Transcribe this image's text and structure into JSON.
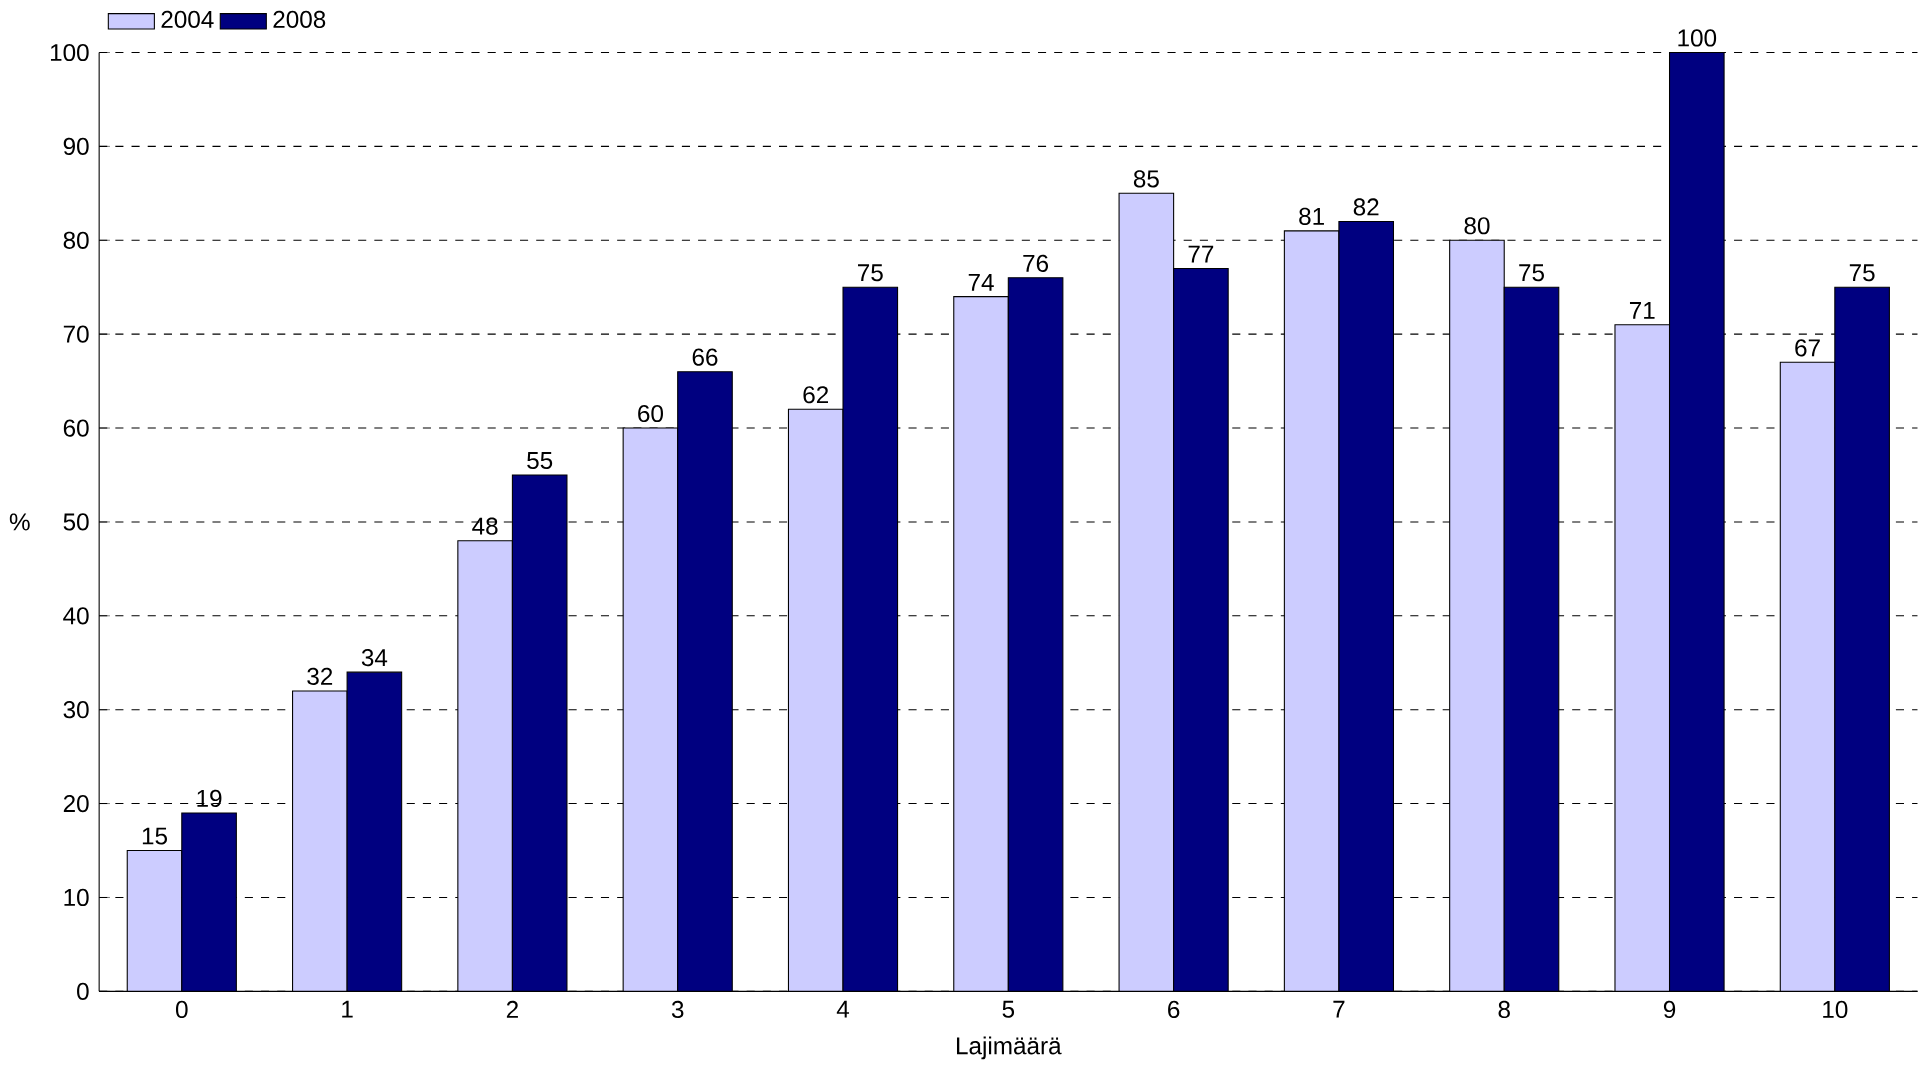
{
  "chart_data": {
    "type": "bar",
    "xlabel": "Lajimäärä",
    "ylabel": "%",
    "categories": [
      "0",
      "1",
      "2",
      "3",
      "4",
      "5",
      "6",
      "7",
      "8",
      "9",
      "10"
    ],
    "series": [
      {
        "name": "2004",
        "color": "#ccccff",
        "values": [
          15,
          32,
          48,
          60,
          62,
          74,
          85,
          81,
          80,
          71,
          67
        ]
      },
      {
        "name": "2008",
        "color": "#000080",
        "values": [
          19,
          34,
          55,
          66,
          75,
          76,
          77,
          82,
          75,
          100,
          75
        ]
      }
    ],
    "ylim": [
      0,
      100
    ],
    "yticks": [
      0,
      10,
      20,
      30,
      40,
      50,
      60,
      70,
      80,
      90,
      100
    ],
    "grid": "y",
    "legend": "top left",
    "data_labels": true
  }
}
